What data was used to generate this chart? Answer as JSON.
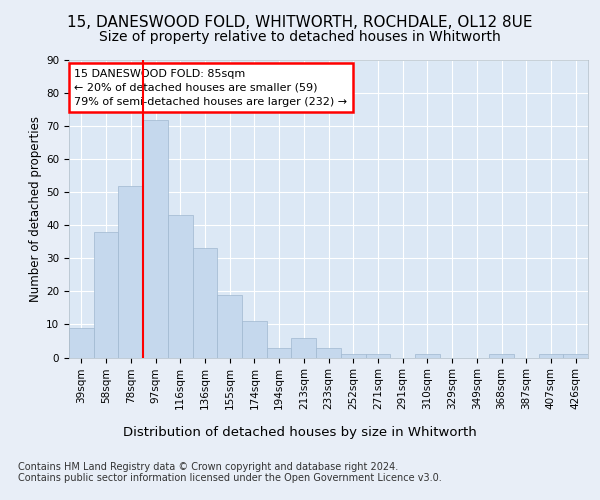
{
  "title1": "15, DANESWOOD FOLD, WHITWORTH, ROCHDALE, OL12 8UE",
  "title2": "Size of property relative to detached houses in Whitworth",
  "xlabel": "Distribution of detached houses by size in Whitworth",
  "ylabel": "Number of detached properties",
  "categories": [
    "39sqm",
    "58sqm",
    "78sqm",
    "97sqm",
    "116sqm",
    "136sqm",
    "155sqm",
    "174sqm",
    "194sqm",
    "213sqm",
    "233sqm",
    "252sqm",
    "271sqm",
    "291sqm",
    "310sqm",
    "329sqm",
    "349sqm",
    "368sqm",
    "387sqm",
    "407sqm",
    "426sqm"
  ],
  "values": [
    9,
    38,
    52,
    72,
    43,
    33,
    19,
    11,
    3,
    6,
    3,
    1,
    1,
    0,
    1,
    0,
    0,
    1,
    0,
    1,
    1
  ],
  "bar_color": "#c5d8ed",
  "bar_edge_color": "#a0b8d0",
  "vline_x": 2.5,
  "vline_color": "red",
  "annotation_text": "15 DANESWOOD FOLD: 85sqm\n← 20% of detached houses are smaller (59)\n79% of semi-detached houses are larger (232) →",
  "annotation_box_color": "white",
  "annotation_box_edge": "red",
  "ylim": [
    0,
    90
  ],
  "yticks": [
    0,
    10,
    20,
    30,
    40,
    50,
    60,
    70,
    80,
    90
  ],
  "footer": "Contains HM Land Registry data © Crown copyright and database right 2024.\nContains public sector information licensed under the Open Government Licence v3.0.",
  "bg_color": "#e8eef7",
  "plot_bg_color": "#dce8f5",
  "title1_fontsize": 11,
  "title2_fontsize": 10,
  "xlabel_fontsize": 9.5,
  "ylabel_fontsize": 8.5,
  "footer_fontsize": 7,
  "tick_fontsize": 7.5,
  "annot_fontsize": 8
}
